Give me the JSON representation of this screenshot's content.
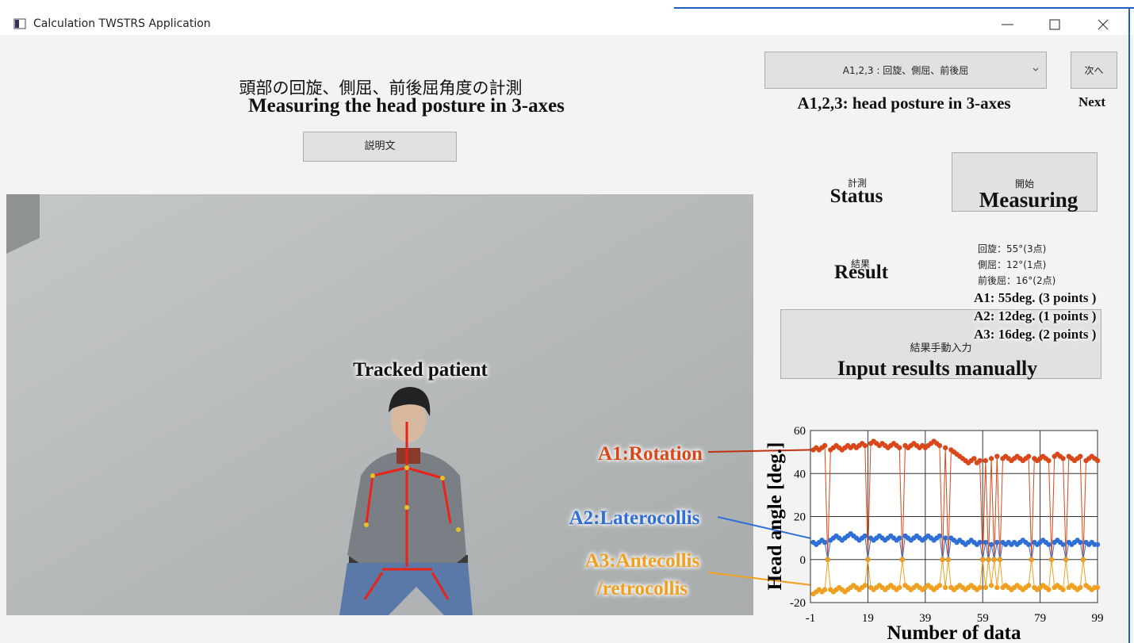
{
  "window": {
    "title": "Calculation TWSTRS Application"
  },
  "header": {
    "title": "頭部の回旋、側屈、前後屈角度の計測",
    "explain_button": "説明文"
  },
  "mode_select": {
    "value": "A1,2,3 : 回旋、側屈、前後屈",
    "next_button": "次へ"
  },
  "status": {
    "label": "計測",
    "button": "開始"
  },
  "result": {
    "label": "結果",
    "lines": [
      "回旋：55°(3点)",
      "側屈：12°(1点)",
      "前後屈：16°(2点)"
    ],
    "manual_button": "結果手動入力"
  },
  "annotations": {
    "title": "Measuring the head posture in 3-axes",
    "mode": "A1,2,3: head posture in 3-axes",
    "next": "Next",
    "status": "Status",
    "measuring": "Measuring",
    "result": "Result",
    "result_lines": [
      "A1: 55deg. (3 points )",
      "A2: 12deg. (1 points )",
      "A3: 16deg. (2 points )"
    ],
    "manual": "Input results manually",
    "tracked": "Tracked patient"
  },
  "chart_data": {
    "type": "line",
    "xlabel": "Number of data",
    "ylabel": "Head angle [deg.]",
    "x": [
      0,
      1,
      2,
      3,
      4,
      5,
      6,
      7,
      8,
      9,
      10,
      11,
      12,
      13,
      14,
      15,
      16,
      17,
      18,
      19,
      20,
      21,
      22,
      23,
      24,
      25,
      26,
      27,
      28,
      29,
      30,
      31,
      32,
      33,
      34,
      35,
      36,
      37,
      38,
      39,
      40,
      41,
      42,
      43,
      44,
      45,
      46,
      47,
      48,
      49,
      50,
      51,
      52,
      53,
      54,
      55,
      56,
      57,
      58,
      59,
      60,
      61,
      62,
      63,
      64,
      65,
      66,
      67,
      68,
      69,
      70,
      71,
      72,
      73,
      74,
      75,
      76,
      77,
      78,
      79,
      80,
      81,
      82,
      83,
      84,
      85,
      86,
      87,
      88,
      89,
      90,
      91,
      92,
      93,
      94,
      95,
      96,
      97,
      98,
      99
    ],
    "series": [
      {
        "name": "A1:Rotation",
        "color": "#d9481a",
        "values": [
          51,
          52,
          51,
          52,
          53,
          0,
          51,
          52,
          53,
          52,
          51,
          52,
          53,
          52,
          53,
          52,
          53,
          54,
          53,
          0,
          54,
          55,
          54,
          53,
          54,
          53,
          52,
          53,
          54,
          53,
          52,
          0,
          53,
          52,
          53,
          54,
          53,
          52,
          53,
          52,
          53,
          54,
          55,
          54,
          53,
          0,
          52,
          0,
          51,
          50,
          49,
          48,
          47,
          46,
          45,
          46,
          47,
          45,
          46,
          0,
          46,
          0,
          47,
          0,
          48,
          0,
          47,
          48,
          47,
          46,
          47,
          48,
          47,
          46,
          47,
          48,
          0,
          47,
          46,
          47,
          48,
          47,
          46,
          0,
          48,
          49,
          48,
          47,
          0,
          48,
          47,
          46,
          47,
          48,
          0,
          46,
          47,
          48,
          47,
          46
        ]
      },
      {
        "name": "A2:Laterocollis",
        "color": "#2f6fd6",
        "values": [
          8,
          7,
          8,
          9,
          8,
          0,
          9,
          10,
          11,
          10,
          9,
          10,
          11,
          12,
          11,
          10,
          9,
          10,
          11,
          0,
          10,
          9,
          10,
          11,
          10,
          9,
          10,
          11,
          10,
          9,
          10,
          0,
          11,
          10,
          9,
          10,
          11,
          10,
          9,
          10,
          11,
          10,
          9,
          10,
          11,
          0,
          10,
          0,
          10,
          9,
          8,
          9,
          8,
          7,
          8,
          9,
          8,
          7,
          8,
          0,
          8,
          0,
          7,
          0,
          8,
          0,
          8,
          7,
          8,
          7,
          8,
          7,
          8,
          9,
          8,
          7,
          0,
          8,
          7,
          8,
          9,
          8,
          7,
          0,
          8,
          9,
          8,
          7,
          0,
          8,
          7,
          8,
          9,
          8,
          0,
          8,
          7,
          8,
          7,
          7
        ]
      },
      {
        "name": "A3:Antecollis /retrocollis",
        "color": "#f0a020",
        "values": [
          -16,
          -15,
          -14,
          -15,
          -14,
          0,
          -14,
          -15,
          -14,
          -13,
          -14,
          -15,
          -14,
          -13,
          -12,
          -13,
          -14,
          -13,
          -12,
          0,
          -13,
          -14,
          -13,
          -12,
          -13,
          -14,
          -13,
          -12,
          -13,
          -14,
          -13,
          0,
          -12,
          -13,
          -14,
          -13,
          -12,
          -13,
          -14,
          -13,
          -12,
          -13,
          -14,
          -13,
          -12,
          0,
          -13,
          0,
          -13,
          -14,
          -13,
          -12,
          -13,
          -14,
          -13,
          -12,
          -13,
          -14,
          -13,
          0,
          -13,
          0,
          -12,
          0,
          -13,
          0,
          -13,
          -12,
          -13,
          -14,
          -13,
          -12,
          -13,
          -14,
          -13,
          -12,
          0,
          -13,
          -14,
          -13,
          -12,
          -13,
          -14,
          0,
          -13,
          -12,
          -13,
          -14,
          0,
          -13,
          -12,
          -13,
          -14,
          -13,
          0,
          -12,
          -13,
          -14,
          -13,
          -13
        ]
      }
    ],
    "xlim": [
      -1,
      99
    ],
    "ylim": [
      -20,
      60
    ],
    "xticks": [
      -1,
      19,
      39,
      59,
      79,
      99
    ],
    "yticks": [
      -20,
      0,
      20,
      40,
      60
    ],
    "grid": true
  }
}
